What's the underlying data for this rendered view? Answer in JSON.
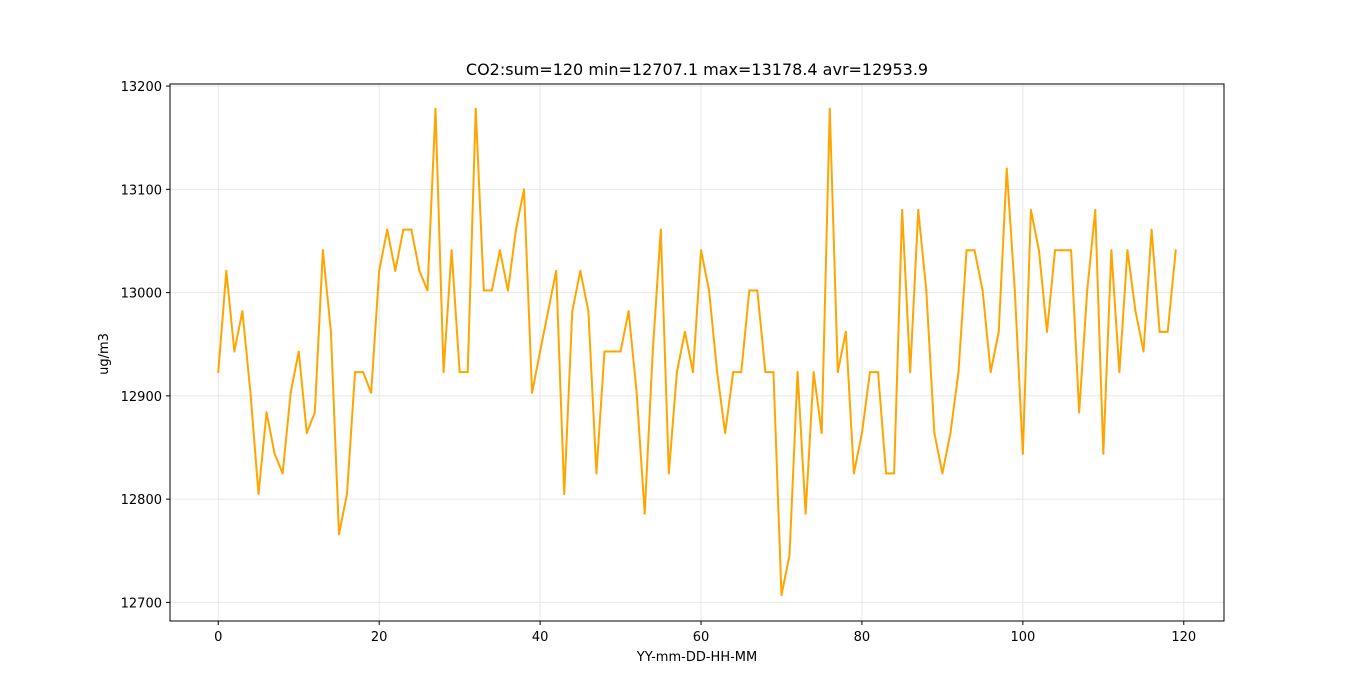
{
  "chart_data": {
    "type": "line",
    "title": "CO2:sum=120 min=12707.1 max=13178.4 avr=12953.9",
    "xlabel": "YY-mm-DD-HH-MM",
    "ylabel": "ug/m3",
    "xlim": [
      -6,
      125
    ],
    "ylim": [
      12682,
      13202
    ],
    "xticks": [
      0,
      20,
      40,
      60,
      80,
      100,
      120
    ],
    "yticks": [
      12700,
      12800,
      12900,
      13000,
      13100,
      13200
    ],
    "grid": true,
    "line_color": "#FFA500",
    "series": [
      {
        "x": [
          0,
          1,
          2,
          3,
          4,
          5,
          6,
          7,
          8,
          9,
          10,
          11,
          12,
          13,
          14,
          15,
          16,
          17,
          18,
          19,
          20,
          21,
          22,
          23,
          24,
          25,
          26,
          27,
          28,
          29,
          30,
          31,
          32,
          33,
          34,
          35,
          36,
          37,
          38,
          39,
          40,
          41,
          42,
          43,
          44,
          45,
          46,
          47,
          48,
          49,
          50,
          51,
          52,
          53,
          54,
          55,
          56,
          57,
          58,
          59,
          60,
          61,
          62,
          63,
          64,
          65,
          66,
          67,
          68,
          69,
          70,
          71,
          72,
          73,
          74,
          75,
          76,
          77,
          78,
          79,
          80,
          81,
          82,
          83,
          84,
          85,
          86,
          87,
          88,
          89,
          90,
          91,
          92,
          93,
          94,
          95,
          96,
          97,
          98,
          99,
          100,
          101,
          102,
          103,
          104,
          105,
          106,
          107,
          108,
          109,
          110,
          111,
          112,
          113,
          114,
          115,
          116,
          117,
          118,
          119
        ],
        "values": [
          12923,
          13021,
          12943,
          12982,
          12903,
          12805,
          12884,
          12844,
          12825,
          12903,
          12943,
          12864,
          12884,
          13041,
          12962,
          12766,
          12805,
          12923,
          12923,
          12903,
          13021,
          13061,
          13021,
          13061,
          13061,
          13021,
          13002,
          13178,
          12923,
          13041,
          12923,
          12923,
          13178,
          13002,
          13002,
          13041,
          13002,
          13061,
          13100,
          12903,
          12943,
          12982,
          13021,
          12805,
          12982,
          13021,
          12982,
          12825,
          12943,
          12943,
          12943,
          12982,
          12903,
          12786,
          12943,
          13061,
          12825,
          12923,
          12962,
          12923,
          13041,
          13002,
          12923,
          12864,
          12923,
          12923,
          13002,
          13002,
          12923,
          12923,
          12707,
          12746,
          12923,
          12786,
          12923,
          12864,
          13178,
          12923,
          12962,
          12825,
          12864,
          12923,
          12923,
          12825,
          12825,
          13080,
          12923,
          13080,
          13002,
          12864,
          12825,
          12864,
          12923,
          13041,
          13041,
          13002,
          12923,
          12962,
          13120,
          13002,
          12844,
          13080,
          13041,
          12962,
          13041,
          13041,
          13041,
          12884,
          13002,
          13080,
          12844,
          13041,
          12923,
          13041,
          12982,
          12943,
          13061,
          12962,
          12962,
          13041
        ]
      }
    ]
  }
}
